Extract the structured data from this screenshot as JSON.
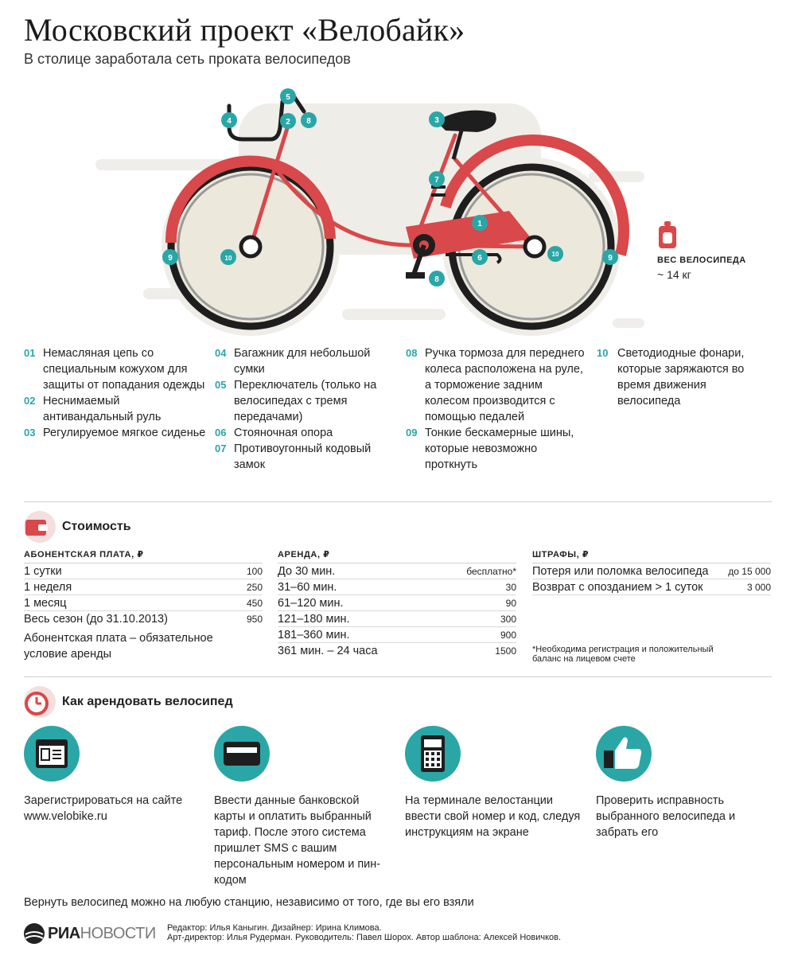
{
  "header": {
    "title": "Московский проект «Велобайк»",
    "subtitle": "В столице заработала сеть проката велосипедов"
  },
  "bike": {
    "markers": [
      "1",
      "2",
      "3",
      "4",
      "5",
      "6",
      "7",
      "8",
      "8",
      "9",
      "9",
      "10",
      "10"
    ],
    "colors": {
      "accent_red": "#d9484a",
      "teal": "#2aa6a6",
      "tire": "#1e1e1e",
      "wheel_fill": "#ece8dc"
    }
  },
  "weight": {
    "label": "ВЕС ВЕЛОСИПЕДА",
    "value": "~ 14 кг",
    "icon": "weight-icon"
  },
  "features": {
    "col1": [
      {
        "num": "01",
        "text": "Немасляная цепь со специальным кожухом для защиты от попадания одежды"
      },
      {
        "num": "02",
        "text": "Неснимаемый антивандальный руль"
      },
      {
        "num": "03",
        "text": "Регулируемое мягкое сиденье"
      }
    ],
    "col2": [
      {
        "num": "04",
        "text": "Багажник для небольшой сумки"
      },
      {
        "num": "05",
        "text": "Переключатель (только на велосипедах с тремя передачами)"
      },
      {
        "num": "06",
        "text": "Стояночная опора"
      },
      {
        "num": "07",
        "text": "Противоугонный кодовый замок"
      }
    ],
    "col3": [
      {
        "num": "08",
        "text": "Ручка тормоза для переднего колеса расположена на руле, а торможение задним колесом производится с помощью педалей"
      },
      {
        "num": "09",
        "text": "Тонкие бескамерные шины, которые невозможно проткнуть"
      }
    ],
    "col4": [
      {
        "num": "10",
        "text": "Светодиодные фонари, которые заряжаются во время движения велосипеда"
      }
    ]
  },
  "cost": {
    "title": "Стоимость",
    "subscription": {
      "header": "АБОНЕНТСКАЯ ПЛАТА, ₽",
      "rows": [
        {
          "label": "1 сутки",
          "value": "100"
        },
        {
          "label": "1 неделя",
          "value": "250"
        },
        {
          "label": "1 месяц",
          "value": "450"
        },
        {
          "label": "Весь сезон (до 31.10.2013)",
          "value": "950"
        }
      ],
      "note": "Абонентская плата – обязательное условие аренды"
    },
    "rent": {
      "header": "АРЕНДА, ₽",
      "rows": [
        {
          "label": "До 30 мин.",
          "value": "бесплатно*"
        },
        {
          "label": "31–60 мин.",
          "value": "30"
        },
        {
          "label": "61–120 мин.",
          "value": "90"
        },
        {
          "label": "121–180 мин.",
          "value": "300"
        },
        {
          "label": "181–360 мин.",
          "value": "900"
        },
        {
          "label": "361 мин. – 24 часа",
          "value": "1500"
        }
      ]
    },
    "fines": {
      "header": "ШТРАФЫ, ₽",
      "rows": [
        {
          "label": "Потеря или поломка велосипеда",
          "value": "до 15 000"
        },
        {
          "label": "Возврат с опозданием > 1 суток",
          "value": "3 000"
        }
      ],
      "footnote": "*Необходима регистрация и положительный баланс на лицевом счете"
    }
  },
  "howto": {
    "title": "Как арендовать велосипед",
    "steps": [
      {
        "icon": "browser-icon",
        "text": "Зарегистрироваться на сайте www.velobike.ru"
      },
      {
        "icon": "bank-card-icon",
        "text": "Ввести данные банковской карты и оплатить выбранный тариф. После этого система пришлет SMS с вашим персональным номером и пин-кодом"
      },
      {
        "icon": "terminal-icon",
        "text": "На терминале велостанции ввести свой номер и код, следуя инструкциям на экране"
      },
      {
        "icon": "thumbs-up-icon",
        "text": "Проверить исправность выбранного велосипеда и забрать его"
      }
    ],
    "return_note": "Вернуть велосипед можно на любую станцию, независимо от того, где вы его взяли"
  },
  "footer": {
    "logo_bold": "РИА",
    "logo_light": "НОВОСТИ",
    "credits_line1": "Редактор: Илья Каныгин. Дизайнер: Ирина Климова.",
    "credits_line2": "Арт-директор: Илья Рудерман. Руководитель: Павел Шорох. Автор шаблона: Алексей Новичков."
  }
}
